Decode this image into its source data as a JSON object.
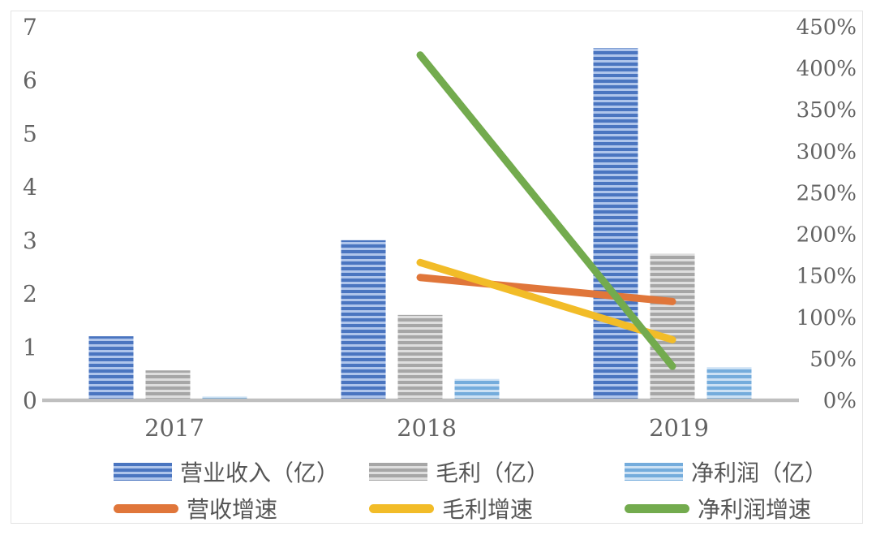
{
  "page": {
    "background": "#ffffff"
  },
  "frame": {
    "border_color": "#e3e3e3"
  },
  "chart_data": {
    "type": "combo-bar-line",
    "title": "",
    "grid": false,
    "legend_position": "bottom",
    "categories": [
      "2017",
      "2018",
      "2019"
    ],
    "bar_series": [
      {
        "id": "revenue",
        "name": "营业收入（亿）",
        "values": [
          1.2,
          3.0,
          6.6
        ],
        "color": "#4A75C0",
        "color_light": "#AFC5EB",
        "axis": "left"
      },
      {
        "id": "gross-profit",
        "name": "毛利（亿）",
        "values": [
          0.56,
          1.6,
          2.75
        ],
        "color": "#A6A6A6",
        "color_light": "#DEDEDE",
        "axis": "left"
      },
      {
        "id": "net-profit",
        "name": "净利润（亿）",
        "values": [
          0.07,
          0.4,
          0.62
        ],
        "color": "#74ACDC",
        "color_light": "#CCE1F4",
        "axis": "left"
      }
    ],
    "line_series": [
      {
        "id": "revenue-growth",
        "name": "营收增速",
        "values_pct": [
          null,
          148,
          119
        ],
        "color": "#E0763A",
        "axis": "right"
      },
      {
        "id": "gross-profit-growth",
        "name": "毛利增速",
        "values_pct": [
          null,
          166,
          73
        ],
        "color": "#F2BC28",
        "axis": "right"
      },
      {
        "id": "net-profit-growth",
        "name": "净利润增速",
        "values_pct": [
          null,
          416,
          41
        ],
        "color": "#73AB4E",
        "axis": "right"
      }
    ],
    "left_axis": {
      "min": 0,
      "max": 7,
      "ticks": [
        0,
        1,
        2,
        3,
        4,
        5,
        6,
        7
      ]
    },
    "right_axis": {
      "min": 0,
      "max": 450,
      "tick_values": [
        0,
        50,
        100,
        150,
        200,
        250,
        300,
        350,
        400,
        450
      ],
      "suffix": "%"
    },
    "axis_line_color": "#BFBFBF",
    "tick_text_color": "#636363"
  }
}
